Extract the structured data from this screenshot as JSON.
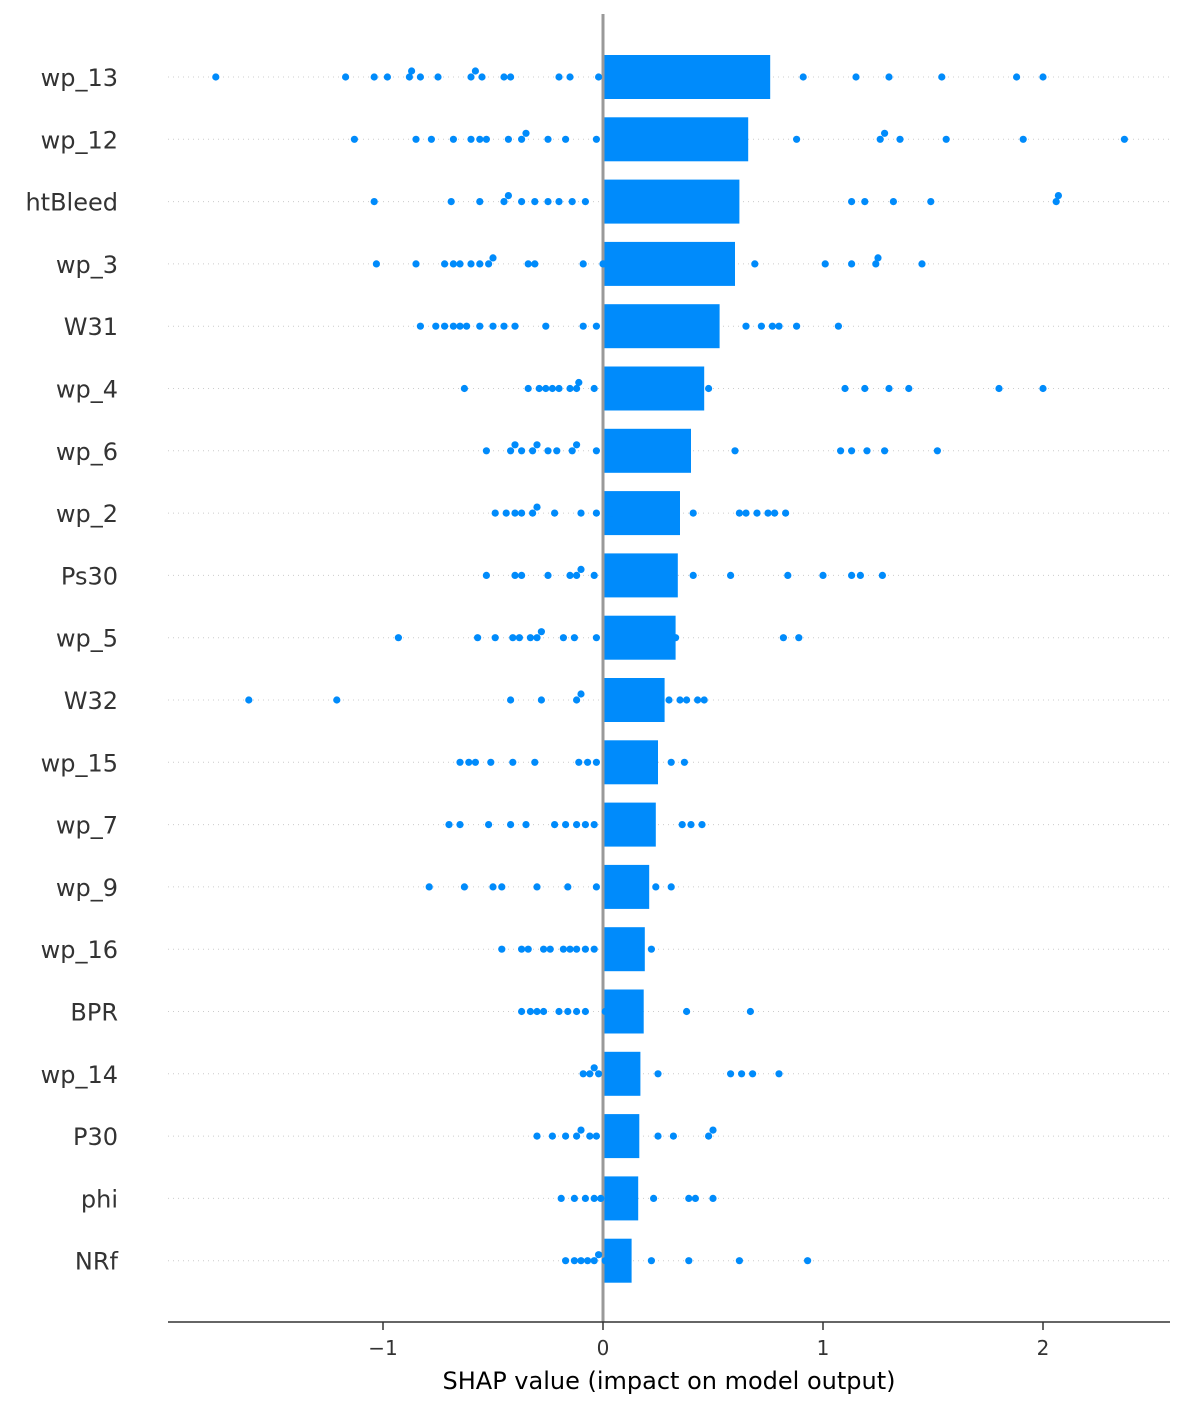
{
  "chart_data": {
    "type": "bar",
    "xlabel": "SHAP value (impact on model output)",
    "xlim": [
      -1.98,
      2.57
    ],
    "xticks": [
      {
        "value": -1,
        "label": "−1"
      },
      {
        "value": 0,
        "label": "0"
      },
      {
        "value": 1,
        "label": "1"
      },
      {
        "value": 2,
        "label": "2"
      }
    ],
    "categories": [
      "wp_13",
      "wp_12",
      "htBleed",
      "wp_3",
      "W31",
      "wp_4",
      "wp_6",
      "wp_2",
      "Ps30",
      "wp_5",
      "W32",
      "wp_15",
      "wp_7",
      "wp_9",
      "wp_16",
      "BPR",
      "wp_14",
      "P30",
      "phi",
      "NRf"
    ],
    "series": [
      {
        "type": "bar",
        "values": [
          0.76,
          0.66,
          0.62,
          0.6,
          0.53,
          0.46,
          0.4,
          0.35,
          0.34,
          0.33,
          0.28,
          0.25,
          0.24,
          0.21,
          0.19,
          0.185,
          0.17,
          0.165,
          0.16,
          0.13
        ]
      },
      {
        "type": "scatter",
        "points": [
          [
            -1.76,
            -1.17,
            -1.04,
            -0.98,
            -0.88,
            -0.87,
            -0.83,
            -0.75,
            -0.6,
            -0.58,
            -0.55,
            -0.45,
            -0.42,
            -0.2,
            -0.15,
            -0.02,
            0.91,
            1.15,
            1.3,
            1.54,
            1.88,
            2.0
          ],
          [
            -1.13,
            -0.85,
            -0.78,
            -0.68,
            -0.6,
            -0.56,
            -0.53,
            -0.43,
            -0.37,
            -0.35,
            -0.25,
            -0.17,
            -0.03,
            0.88,
            1.26,
            1.28,
            1.35,
            1.56,
            1.91,
            2.37
          ],
          [
            -1.04,
            -0.69,
            -0.56,
            -0.45,
            -0.43,
            -0.37,
            -0.31,
            -0.25,
            -0.2,
            -0.14,
            -0.08,
            1.13,
            1.19,
            1.32,
            1.49,
            2.06,
            2.07
          ],
          [
            -1.03,
            -0.85,
            -0.72,
            -0.68,
            -0.65,
            -0.6,
            -0.56,
            -0.52,
            -0.5,
            -0.34,
            -0.31,
            -0.09,
            0.0,
            0.69,
            1.01,
            1.13,
            1.24,
            1.25,
            1.45
          ],
          [
            -0.83,
            -0.76,
            -0.72,
            -0.68,
            -0.65,
            -0.62,
            -0.56,
            -0.5,
            -0.45,
            -0.4,
            -0.26,
            -0.09,
            -0.03,
            0.65,
            0.72,
            0.77,
            0.8,
            0.88,
            1.07
          ],
          [
            -0.63,
            -0.34,
            -0.29,
            -0.26,
            -0.23,
            -0.2,
            -0.15,
            -0.12,
            -0.11,
            -0.04,
            0.48,
            1.1,
            1.19,
            1.3,
            1.39,
            1.8,
            2.0
          ],
          [
            -0.53,
            -0.42,
            -0.4,
            -0.37,
            -0.32,
            -0.3,
            -0.25,
            -0.21,
            -0.14,
            -0.12,
            -0.03,
            0.6,
            1.08,
            1.13,
            1.2,
            1.28,
            1.52
          ],
          [
            -0.49,
            -0.44,
            -0.4,
            -0.37,
            -0.32,
            -0.3,
            -0.22,
            -0.1,
            -0.03,
            0.04,
            0.41,
            0.62,
            0.65,
            0.7,
            0.75,
            0.78,
            0.83
          ],
          [
            -0.53,
            -0.4,
            -0.37,
            -0.25,
            -0.15,
            -0.12,
            -0.1,
            -0.04,
            0.41,
            0.58,
            0.84,
            1.0,
            1.13,
            1.17,
            1.27
          ],
          [
            -0.93,
            -0.57,
            -0.49,
            -0.41,
            -0.38,
            -0.33,
            -0.3,
            -0.28,
            -0.18,
            -0.13,
            -0.03,
            0.33,
            0.82,
            0.89
          ],
          [
            -1.61,
            -1.21,
            -0.42,
            -0.28,
            -0.12,
            -0.1,
            0.3,
            0.35,
            0.38,
            0.43,
            0.46
          ],
          [
            -0.65,
            -0.61,
            -0.58,
            -0.51,
            -0.41,
            -0.31,
            -0.11,
            -0.07,
            -0.03,
            0.31,
            0.37
          ],
          [
            -0.7,
            -0.65,
            -0.52,
            -0.42,
            -0.35,
            -0.22,
            -0.17,
            -0.12,
            -0.08,
            -0.04,
            0.36,
            0.4,
            0.45
          ],
          [
            -0.79,
            -0.63,
            -0.5,
            -0.46,
            -0.3,
            -0.16,
            -0.03,
            0.24,
            0.31
          ],
          [
            -0.46,
            -0.37,
            -0.34,
            -0.27,
            -0.24,
            -0.18,
            -0.15,
            -0.12,
            -0.08,
            -0.04,
            0.22
          ],
          [
            -0.37,
            -0.33,
            -0.3,
            -0.27,
            -0.2,
            -0.16,
            -0.12,
            -0.08,
            0.01,
            0.38,
            0.67
          ],
          [
            -0.09,
            -0.06,
            -0.04,
            -0.02,
            0.25,
            0.58,
            0.63,
            0.68,
            0.8
          ],
          [
            -0.3,
            -0.23,
            -0.17,
            -0.12,
            -0.1,
            -0.06,
            -0.03,
            0.25,
            0.32,
            0.48,
            0.5
          ],
          [
            -0.19,
            -0.13,
            -0.08,
            -0.04,
            -0.01,
            0.23,
            0.39,
            0.42,
            0.5
          ],
          [
            -0.17,
            -0.13,
            -0.1,
            -0.07,
            -0.04,
            -0.02,
            0.01,
            0.22,
            0.39,
            0.62,
            0.93
          ]
        ]
      }
    ]
  },
  "colors": {
    "bar": "#008bfb",
    "points": "#008bfb",
    "zero_line": "#999999",
    "axis": "#333333"
  }
}
